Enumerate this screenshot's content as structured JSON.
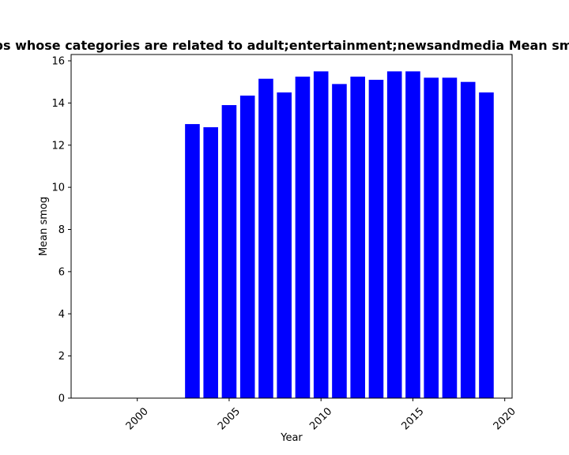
{
  "chart_data": {
    "type": "bar",
    "title": "Percentage of apps whose categories are related to adult;entertainment;newsandmedia Mean smog in privacy policy",
    "xlabel": "Year",
    "ylabel": "Mean smog",
    "x": [
      2003,
      2004,
      2005,
      2006,
      2007,
      2008,
      2009,
      2010,
      2011,
      2012,
      2013,
      2014,
      2015,
      2016,
      2017,
      2018,
      2019
    ],
    "values": [
      13.0,
      12.85,
      13.9,
      14.35,
      15.15,
      14.5,
      15.25,
      15.5,
      14.9,
      15.25,
      15.1,
      15.5,
      15.5,
      15.2,
      15.2,
      15.0,
      14.5
    ],
    "xlim": [
      1996.4,
      2020.4
    ],
    "ylim": [
      0,
      16.3
    ],
    "xticks": [
      2000,
      2005,
      2010,
      2015,
      2020
    ],
    "yticks": [
      0,
      2,
      4,
      6,
      8,
      10,
      12,
      14,
      16
    ],
    "bar_color": "#0000ff",
    "grid": false,
    "legend": "none"
  }
}
